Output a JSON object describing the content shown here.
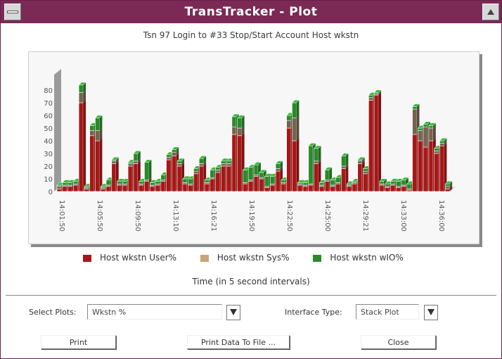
{
  "window": {
    "title": "TransTracker - Plot"
  },
  "colors": {
    "user": "#a81616",
    "sys": "#74644f",
    "wio": "#2a8a2a",
    "titlebar": "#7a2a55",
    "legend_sys": "#c8a478"
  },
  "chart_data": {
    "type": "bar",
    "title": "Tsn 97 Login to #33 Stop/Start Account Host wkstn",
    "xlabel": "Time (in 5 second intervals)",
    "ylim": [
      0,
      90
    ],
    "yticks": [
      0,
      10,
      20,
      30,
      40,
      50,
      60,
      70,
      80
    ],
    "xtick_labels": [
      "14:01:50",
      "14:05:50",
      "14:09:50",
      "14:13:10",
      "14:16:21",
      "14:19:50",
      "14:22:50",
      "14:25:00",
      "14:29:21",
      "14:33:00",
      "14:36:00"
    ],
    "series": [
      {
        "name": "Host wkstn User%",
        "values": [
          2,
          4,
          4,
          5,
          70,
          2,
          44,
          40,
          2,
          4,
          22,
          5,
          5,
          20,
          22,
          5,
          8,
          4,
          5,
          8,
          25,
          28,
          20,
          6,
          5,
          14,
          20,
          6,
          10,
          15,
          20,
          20,
          45,
          44,
          6,
          8,
          12,
          10,
          3,
          5,
          16,
          6,
          50,
          40,
          5,
          4,
          5,
          22,
          4,
          8,
          4,
          6,
          18,
          4,
          6,
          22,
          14,
          72,
          76,
          5,
          3,
          5,
          3,
          4,
          1,
          45,
          40,
          35,
          40,
          30,
          36,
          2
        ]
      },
      {
        "name": "Host wkstn Sys%",
        "values": [
          2,
          1,
          1,
          1,
          8,
          1,
          4,
          8,
          1,
          1,
          2,
          1,
          1,
          2,
          2,
          1,
          1,
          1,
          1,
          1,
          2,
          3,
          2,
          1,
          1,
          2,
          2,
          1,
          1,
          2,
          2,
          2,
          6,
          6,
          1,
          1,
          1,
          1,
          1,
          1,
          2,
          1,
          6,
          18,
          1,
          1,
          1,
          2,
          1,
          1,
          1,
          1,
          2,
          1,
          1,
          2,
          2,
          2,
          1,
          1,
          1,
          1,
          1,
          1,
          1,
          20,
          8,
          16,
          10,
          2,
          2,
          2
        ]
      },
      {
        "name": "Host wkstn wIO%",
        "values": [
          1,
          2,
          2,
          2,
          6,
          1,
          4,
          10,
          1,
          4,
          1,
          2,
          2,
          1,
          6,
          2,
          14,
          2,
          2,
          4,
          2,
          2,
          2,
          3,
          4,
          2,
          4,
          2,
          6,
          2,
          2,
          2,
          8,
          8,
          10,
          10,
          8,
          4,
          8,
          6,
          4,
          2,
          4,
          12,
          1,
          2,
          30,
          10,
          2,
          8,
          4,
          4,
          8,
          1,
          1,
          1,
          2,
          2,
          1,
          2,
          2,
          2,
          4,
          4,
          4,
          2,
          2,
          2,
          2,
          2,
          2,
          2
        ]
      }
    ]
  },
  "legend": [
    {
      "label": "Host wkstn User%",
      "color": "#a81616"
    },
    {
      "label": "Host wkstn Sys%",
      "color": "#c8a478"
    },
    {
      "label": "Host wkstn wIO%",
      "color": "#2a8a2a"
    }
  ],
  "controls": {
    "select_plots_label": "Select Plots:",
    "select_plots_value": "Wkstn %",
    "interface_type_label": "Interface Type:",
    "interface_type_value": "Stack Plot",
    "print_label": "Print",
    "print_data_label": "Print Data To File ...",
    "close_label": "Close"
  }
}
